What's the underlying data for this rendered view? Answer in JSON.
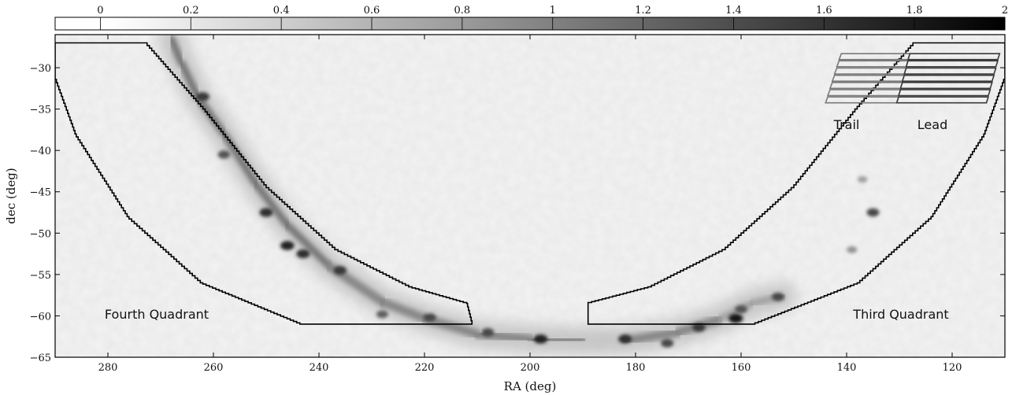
{
  "chart_data": {
    "type": "heatmap",
    "xlabel": "RA (deg)",
    "ylabel": "dec (deg)",
    "xlim": [
      290,
      110
    ],
    "ylim": [
      -65,
      -26
    ],
    "x_ticks": [
      280,
      260,
      240,
      220,
      200,
      180,
      160,
      140,
      120
    ],
    "y_ticks": [
      -30,
      -35,
      -40,
      -45,
      -50,
      -55,
      -60,
      -65
    ],
    "colorbar": {
      "range": [
        -0.1,
        2
      ],
      "ticks": [
        "0",
        "0.2",
        "0.4",
        "0.6",
        "0.8",
        "1",
        "1.2",
        "1.4",
        "1.6",
        "1.8",
        "2"
      ],
      "colormap": "white-to-black"
    },
    "annotations": {
      "fourth_quadrant": "Fourth Quadrant",
      "third_quadrant": "Third Quadrant",
      "trail": "Trail",
      "lead": "Lead"
    },
    "galactic_plane_ridge": [
      [
        268,
        -26.5
      ],
      [
        266,
        -29.5
      ],
      [
        263,
        -33.5
      ],
      [
        258,
        -38
      ],
      [
        252,
        -44
      ],
      [
        246,
        -49
      ],
      [
        238,
        -54
      ],
      [
        228,
        -58.3
      ],
      [
        220,
        -60.3
      ],
      [
        210,
        -62.2
      ],
      [
        200,
        -62.8
      ],
      [
        190,
        -63
      ],
      [
        182,
        -63
      ],
      [
        172,
        -62
      ],
      [
        164,
        -60.4
      ],
      [
        158,
        -58.5
      ],
      [
        152,
        -57.6
      ]
    ],
    "bright_spots": [
      {
        "ra": 262,
        "dec": -33.5,
        "intensity": 1.3
      },
      {
        "ra": 258,
        "dec": -40.5,
        "intensity": 1.1
      },
      {
        "ra": 250,
        "dec": -47.5,
        "intensity": 1.4
      },
      {
        "ra": 246,
        "dec": -51.5,
        "intensity": 1.5
      },
      {
        "ra": 243,
        "dec": -52.5,
        "intensity": 1.4
      },
      {
        "ra": 236,
        "dec": -54.5,
        "intensity": 1.3
      },
      {
        "ra": 228,
        "dec": -59.8,
        "intensity": 1.0
      },
      {
        "ra": 219,
        "dec": -60.2,
        "intensity": 1.2
      },
      {
        "ra": 208,
        "dec": -62,
        "intensity": 1.2
      },
      {
        "ra": 198,
        "dec": -62.8,
        "intensity": 1.5
      },
      {
        "ra": 182,
        "dec": -62.8,
        "intensity": 1.4
      },
      {
        "ra": 174,
        "dec": -63.3,
        "intensity": 1.2
      },
      {
        "ra": 168,
        "dec": -61.4,
        "intensity": 1.3
      },
      {
        "ra": 161,
        "dec": -60.3,
        "intensity": 1.6
      },
      {
        "ra": 160,
        "dec": -59.2,
        "intensity": 1.1
      },
      {
        "ra": 153,
        "dec": -57.7,
        "intensity": 1.2
      },
      {
        "ra": 135,
        "dec": -47.5,
        "intensity": 1.2
      },
      {
        "ra": 137,
        "dec": -43.5,
        "intensity": 0.5
      },
      {
        "ra": 139,
        "dec": -52,
        "intensity": 0.6
      }
    ],
    "survey_regions": [
      {
        "name": "Fourth Quadrant",
        "outline": [
          [
            290,
            -27
          ],
          [
            273,
            -27
          ],
          [
            262,
            -35
          ],
          [
            250,
            -44.5
          ],
          [
            237,
            -52
          ],
          [
            223,
            -56.5
          ],
          [
            212,
            -58.5
          ],
          [
            211,
            -61
          ],
          [
            243,
            -61
          ],
          [
            262,
            -56
          ],
          [
            276,
            -48
          ],
          [
            286,
            -38
          ],
          [
            290,
            -31
          ]
        ]
      },
      {
        "name": "Third Quadrant",
        "outline": [
          [
            110,
            -27
          ],
          [
            127,
            -27
          ],
          [
            138,
            -35
          ],
          [
            150,
            -44.5
          ],
          [
            163,
            -52
          ],
          [
            177,
            -56.5
          ],
          [
            189,
            -58.5
          ],
          [
            189,
            -61
          ],
          [
            158,
            -61
          ],
          [
            138,
            -56
          ],
          [
            124,
            -48
          ],
          [
            114,
            -38
          ],
          [
            110,
            -31
          ]
        ]
      }
    ],
    "inset_grid": {
      "rows": 7,
      "trail_columns": 2,
      "lead_columns": 2,
      "top_dec": -28.3,
      "bottom_dec": -34.4,
      "top_left_ra": 141,
      "top_mid_ra": 128,
      "top_right_ra": 111,
      "bottom_left_ra": 144,
      "bottom_mid_ra": 130.5,
      "bottom_right_ra": 113.5,
      "trail_color": "#7a7a7a",
      "lead_color": "#3a3a3a"
    }
  }
}
